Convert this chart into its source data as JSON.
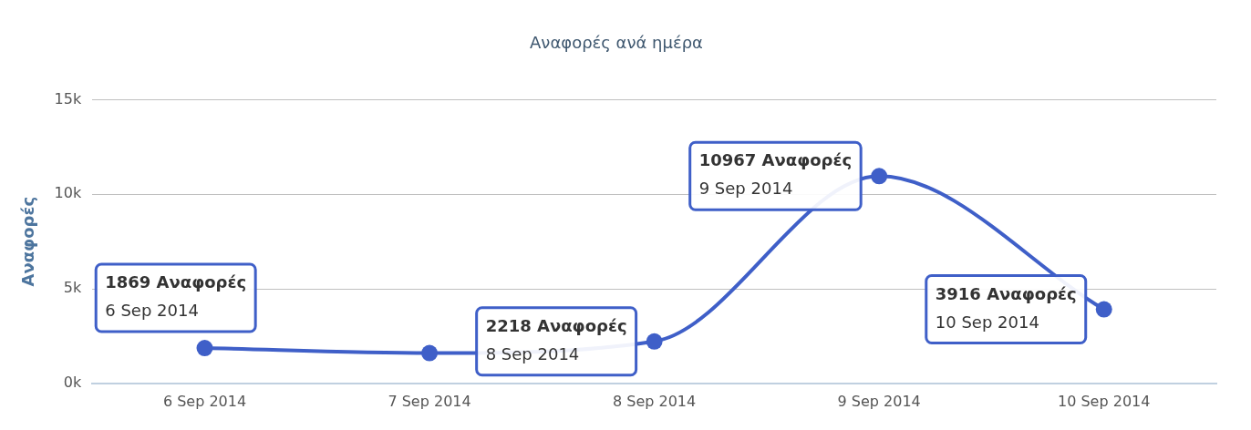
{
  "chart_data": {
    "type": "line",
    "title": "Αναφορές ανά ημέρα",
    "ylabel": "Αναφορές",
    "categories": [
      "6 Sep 2014",
      "7 Sep 2014",
      "8 Sep 2014",
      "9 Sep 2014",
      "10 Sep 2014"
    ],
    "series": [
      {
        "color": "#3f5fc8",
        "values": [
          1869,
          1600,
          2218,
          10967,
          3916
        ]
      }
    ],
    "value_labels": [
      "1869 Αναφορές\n6 Sep 2014",
      null,
      "2218 Αναφορές\n8 Sep 2014",
      "10967 Αναφορές\n9 Sep 2014",
      "3916 Αναφορές\n10 Sep 2014"
    ],
    "ylim": [
      0,
      15000
    ],
    "yticks": [
      {
        "value": 0,
        "label": "0k"
      },
      {
        "value": 5000,
        "label": "5k"
      },
      {
        "value": 10000,
        "label": "10k"
      },
      {
        "value": 15000,
        "label": "15k"
      }
    ],
    "grid": "y",
    "legend": false,
    "marker": "circle",
    "line_style": "solid"
  }
}
